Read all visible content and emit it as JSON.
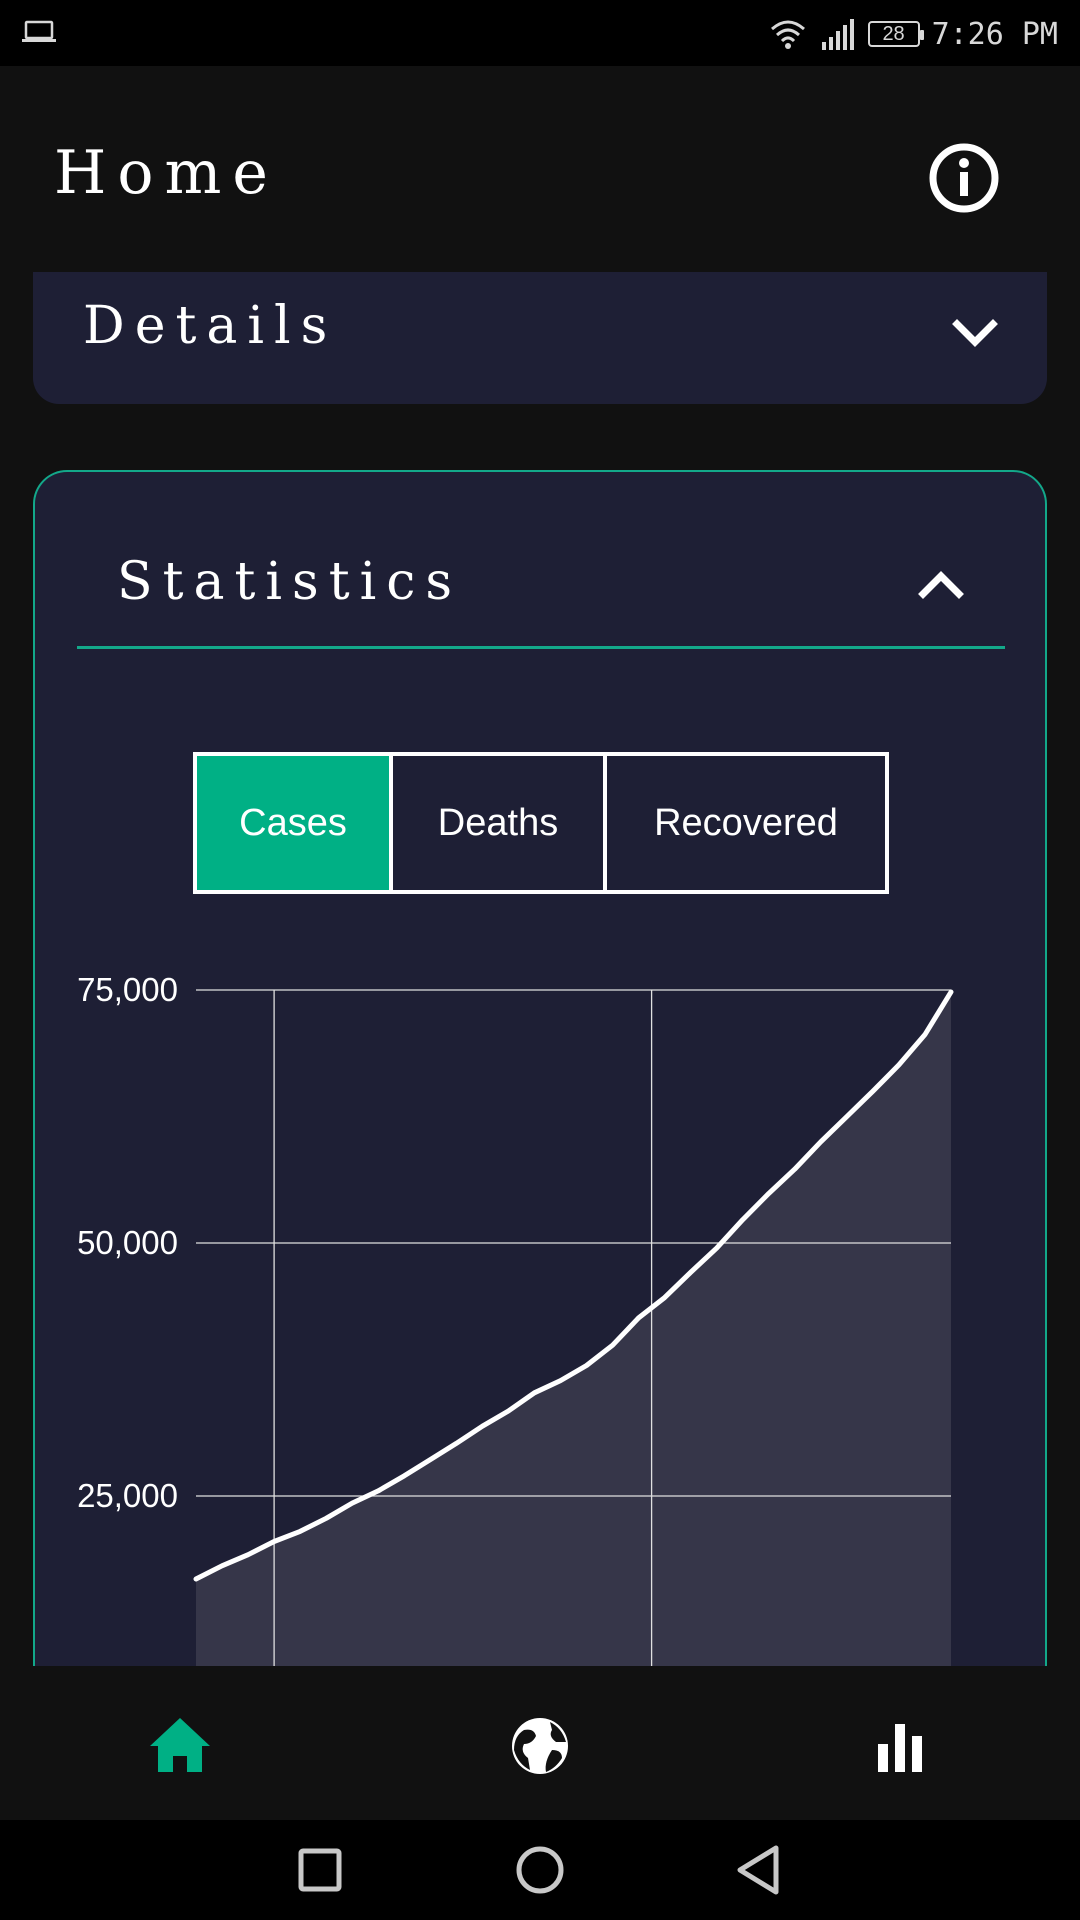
{
  "status_bar": {
    "battery": "28",
    "time": "7:26 PM"
  },
  "header": {
    "title": "Home"
  },
  "details": {
    "title": "Details"
  },
  "statistics": {
    "title": "Statistics",
    "tabs": [
      {
        "label": "Cases",
        "active": true
      },
      {
        "label": "Deaths",
        "active": false
      },
      {
        "label": "Recovered",
        "active": false
      }
    ]
  },
  "colors": {
    "accent": "#00b085",
    "panel": "#1e1f35",
    "border": "#13a88a",
    "area_fill": "#363649"
  },
  "chart_data": {
    "type": "area",
    "x": [
      0,
      1,
      2,
      3,
      4,
      5,
      6,
      7,
      8,
      9,
      10,
      11,
      12,
      13,
      14,
      15,
      16,
      17,
      18,
      19,
      20,
      21,
      22,
      23,
      24,
      25,
      26,
      27,
      28,
      29
    ],
    "values": [
      16800,
      18100,
      19200,
      20500,
      21500,
      22800,
      24300,
      25500,
      27000,
      28600,
      30200,
      31900,
      33400,
      35200,
      36400,
      37900,
      39900,
      42600,
      44600,
      47100,
      49500,
      52300,
      54900,
      57300,
      60000,
      62500,
      65000,
      67600,
      70600,
      74800
    ],
    "ylim": [
      10000,
      75000
    ],
    "yticks": [
      {
        "value": 75000,
        "label": "75,000"
      },
      {
        "value": 50000,
        "label": "50,000"
      },
      {
        "value": 25000,
        "label": "25,000"
      }
    ],
    "vertical_grid_x": [
      3,
      17.5
    ],
    "grid": true,
    "title": "",
    "xlabel": "",
    "ylabel": ""
  },
  "bottom_nav": [
    {
      "icon": "home-icon",
      "active": true
    },
    {
      "icon": "globe-icon",
      "active": false
    },
    {
      "icon": "bar-chart-icon",
      "active": false
    }
  ],
  "system_nav": [
    {
      "icon": "recents-icon"
    },
    {
      "icon": "home-circle-icon"
    },
    {
      "icon": "back-icon"
    }
  ]
}
